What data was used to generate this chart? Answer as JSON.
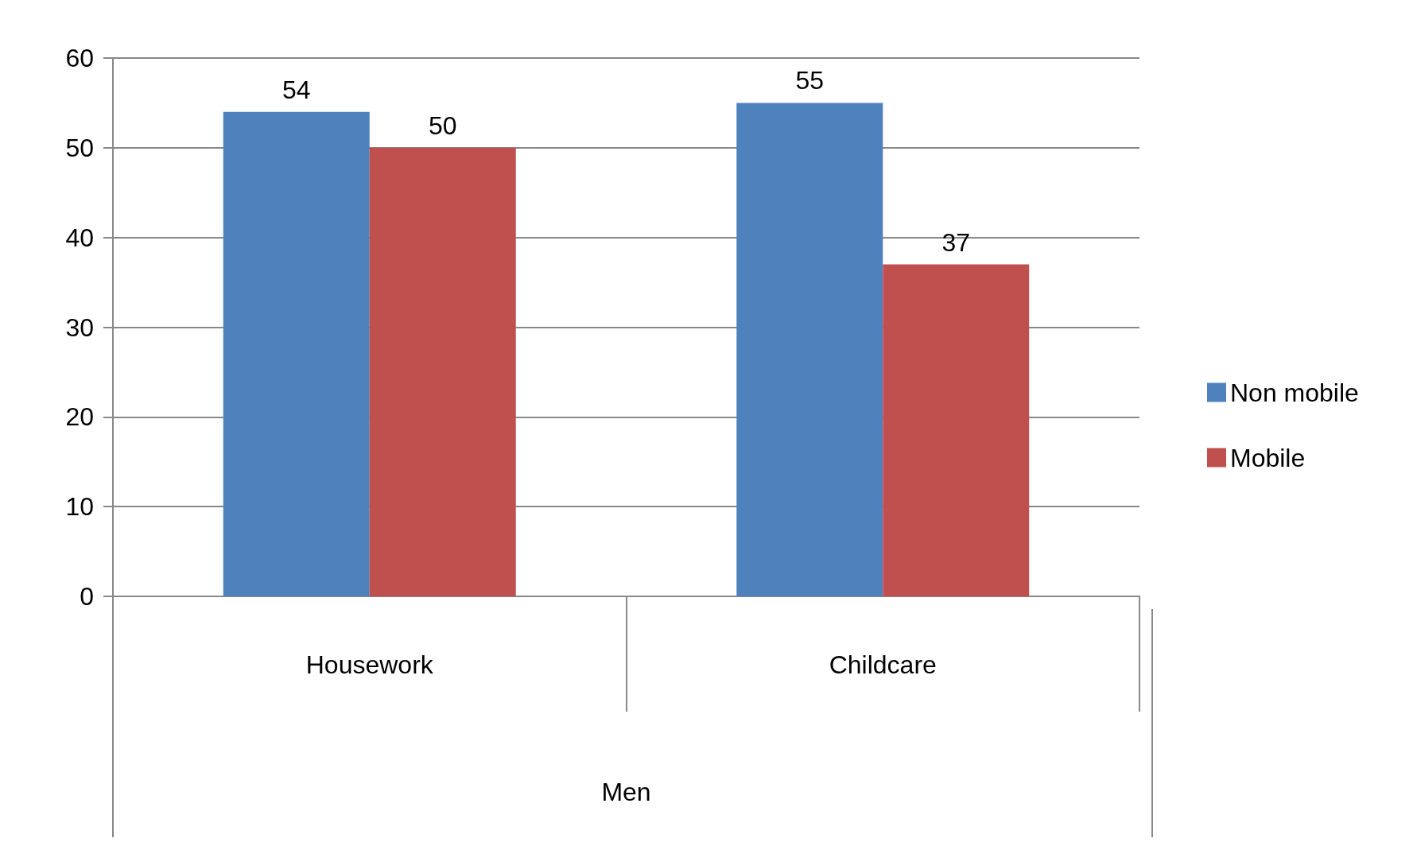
{
  "chart_data": {
    "type": "bar",
    "categories": [
      "Housework",
      "Childcare"
    ],
    "xlabel": "Men",
    "series": [
      {
        "name": "Non mobile",
        "color": "#4f81bd",
        "values": [
          54,
          55
        ]
      },
      {
        "name": "Mobile",
        "color": "#c0504d",
        "values": [
          50,
          37
        ]
      }
    ],
    "ylim": [
      0,
      60
    ],
    "yticks": [
      0,
      10,
      20,
      30,
      40,
      50,
      60
    ],
    "grid": "y",
    "legend": "right",
    "data_labels": true
  }
}
